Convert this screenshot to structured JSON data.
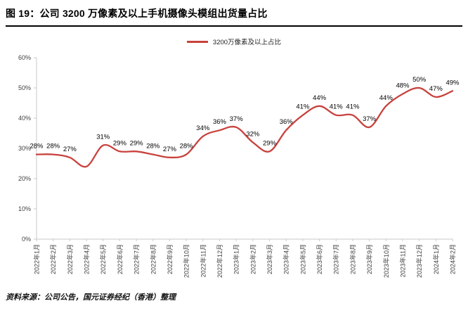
{
  "header": {
    "title": "图 19：公司 3200 万像素及以上手机摄像头模组出货量占比"
  },
  "legend": {
    "label": "3200万像素及以上占比"
  },
  "colors": {
    "line": "#c8423d",
    "axis": "#c9c9c9",
    "tick_text": "#404040",
    "point_label": "#000000"
  },
  "chart_data": {
    "type": "line",
    "title": "图 19：公司 3200 万像素及以上手机摄像头模组出货量占比",
    "categories": [
      "2022年1月",
      "2022年2月",
      "2022年3月",
      "2022年4月",
      "2022年5月",
      "2022年6月",
      "2022年7月",
      "2022年8月",
      "2022年9月",
      "2022年10月",
      "2022年11月",
      "2022年12月",
      "2023年1月",
      "2023年2月",
      "2023年3月",
      "2023年4月",
      "2023年5月",
      "2023年6月",
      "2023年7月",
      "2023年8月",
      "2023年9月",
      "2023年10月",
      "2023年11月",
      "2023年12月",
      "2024年1月",
      "2024年2月"
    ],
    "values": [
      28,
      28,
      27,
      24,
      31,
      29,
      29,
      28,
      27,
      28,
      34,
      36,
      37,
      32,
      29,
      36,
      41,
      44,
      41,
      41,
      37,
      44,
      48,
      50,
      47,
      49
    ],
    "point_labels": [
      "28%",
      "28%",
      "27%",
      "",
      "31%",
      "29%",
      "29%",
      "28%",
      "27%",
      "28%",
      "34%",
      "36%",
      "37%",
      "32%",
      "29%",
      "36%",
      "41%",
      "44%",
      "41%",
      "41%",
      "37%",
      "44%",
      "48%",
      "50%",
      "47%",
      "49%"
    ],
    "series_name": "3200万像素及以上占比",
    "ylim": [
      0,
      60
    ],
    "yticks": [
      "0%",
      "10%",
      "20%",
      "30%",
      "40%",
      "50%",
      "60%"
    ],
    "grid": false,
    "legend_position": "top",
    "xlabel": "",
    "ylabel": ""
  },
  "footer": {
    "source": "资料来源：公司公告，国元证券经纪（香港）整理"
  }
}
